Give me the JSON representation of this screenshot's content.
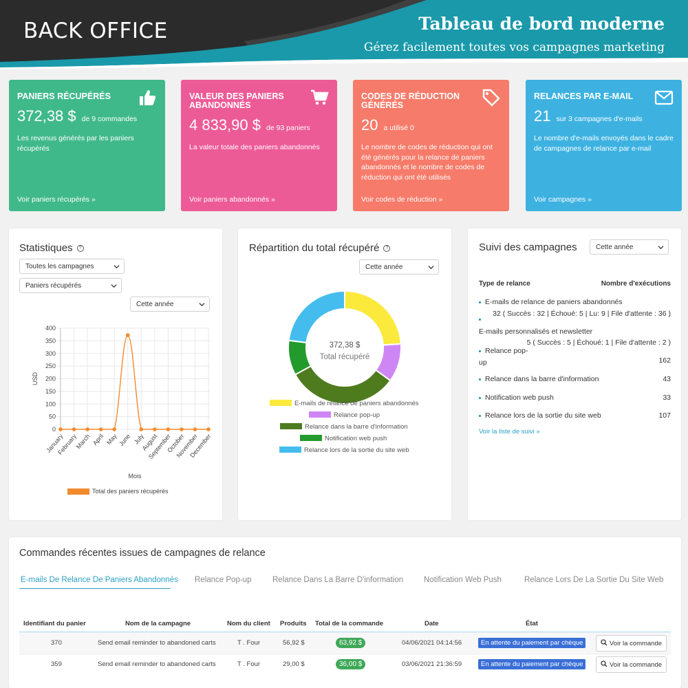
{
  "header": {
    "brand": "BACK OFFICE",
    "title": "Tableau de bord moderne",
    "subtitle": "Gérez facilement toutes vos campagnes marketing"
  },
  "cards": [
    {
      "title": "PANIERS RÉCUPÉRÉS",
      "value": "372,38 $",
      "value_sub": "de 9 commandes",
      "desc": "Les revenus générés par les paniers récupérés",
      "link": "Voir paniers récupérés »",
      "color": "#40b98a",
      "icon": "thumbs-up-icon"
    },
    {
      "title": "VALEUR DES PANIERS ABANDONNÉS",
      "value": "4 833,90 $",
      "value_sub": "de 93 paniers",
      "desc": "La valeur totale des paniers abandonnés",
      "link": "Voir paniers abandonnés »",
      "color": "#ed5b97",
      "icon": "shopping-cart-icon"
    },
    {
      "title": "CODES DE RÉDUCTION GÉNÉRÉS",
      "value": "20",
      "value_sub": "a utilisé 0",
      "desc": "Le nombre de codes de réduction qui ont été générés pour la relance de paniers abandonnés et le nombre de codes de réduction qui ont été utilisés",
      "link": "Voir codes de réduction »",
      "color": "#f67b6a",
      "icon": "tag-icon"
    },
    {
      "title": "RELANCES PAR E-MAIL",
      "value": "21",
      "value_sub": "sur 3 campagnes d'e-mails",
      "desc": "Le nombre d'e-mails envoyés dans le cadre de campagnes de relance par e-mail",
      "link": "Voir campagnes »",
      "color": "#3db2e1",
      "icon": "envelope-icon"
    }
  ],
  "stats": {
    "title": "Statistiques",
    "select_campaigns": "Toutes les campagnes",
    "select_metric": "Paniers récupérés",
    "select_period": "Cette année",
    "chart_data": {
      "type": "line",
      "categories": [
        "January",
        "February",
        "March",
        "April",
        "May",
        "June",
        "July",
        "August",
        "September",
        "October",
        "November",
        "December"
      ],
      "series": [
        {
          "name": "Total des paniers récupérés",
          "values": [
            0,
            0,
            0,
            0,
            0,
            372.38,
            0,
            0,
            0,
            0,
            0,
            0
          ],
          "color": "#f28a2e"
        }
      ],
      "xlabel": "Mois",
      "ylabel": "USD",
      "ylim": [
        0,
        400
      ],
      "yticks": [
        "0",
        "50",
        "100",
        "150",
        "200",
        "250",
        "300",
        "350",
        "400"
      ],
      "grid": true,
      "legend": "bottom"
    }
  },
  "distribution": {
    "title": "Répartition du total récupéré",
    "select_period": "Cette année",
    "center_value": "372,38 $",
    "center_label": "Total récupéré",
    "chart_data": {
      "type": "pie",
      "categories": [
        "E-mails de relance de paniers abandonnés",
        "Relance pop-up",
        "Relance dans la barre d'information",
        "Notification web push",
        "Relance lors de la sortie du site web"
      ],
      "values": [
        24,
        11,
        32,
        10,
        23
      ],
      "colors": [
        "#fbe93c",
        "#cf86f5",
        "#4f7b1f",
        "#239a2c",
        "#44bdee"
      ],
      "legend": "bottom"
    }
  },
  "tracking": {
    "title": "Suivi des campagnes",
    "select_period": "Cette année",
    "col_type": "Type de relance",
    "col_count": "Nombre d'exécutions",
    "items": [
      {
        "label": "E-mails de relance de paniers abandonnés",
        "value": "32 ( Succès : 32 | Échoué: 5 | Lu: 9 | File d'attente : 36 )"
      },
      {
        "label": "E-mails personnalisés et newsletter",
        "value": "5 ( Succès : 5 | Échoué: 1 | File d'attente : 2 )"
      },
      {
        "label": "Relance pop-up",
        "value": "162"
      },
      {
        "label": "Relance dans la barre d'information",
        "value": "43"
      },
      {
        "label": "Notification web push",
        "value": "33"
      },
      {
        "label": "Relance lors de la sortie du site web",
        "value": "107"
      }
    ],
    "link": "Voir la liste de suivi »"
  },
  "orders": {
    "title": "Commandes récentes issues de campagnes de relance",
    "tabs": [
      "E-mails De Relance De Paniers Abandonnés",
      "Relance Pop-up",
      "Relance Dans La Barre D'information",
      "Notification Web Push",
      "Relance Lors De La Sortie Du Site Web"
    ],
    "headers": [
      "Identifiant du panier",
      "Nom de la campagne",
      "Nom du client",
      "Produits",
      "Total de la commande",
      "Date",
      "État"
    ],
    "rows": [
      {
        "id": "370",
        "campaign": "Send email reminder to abandoned carts",
        "customer": "T . Four",
        "products": "56,92 $",
        "total": "63,92 $",
        "date": "04/06/2021 04:14:56",
        "status": "En attente du paiement par chèque",
        "action": "Voir la commande"
      },
      {
        "id": "359",
        "campaign": "Send email reminder to abandoned carts",
        "customer": "T . Four",
        "products": "29,00 $",
        "total": "36,00 $",
        "date": "03/06/2021 21:36:59",
        "status": "En attente du paiement par chèque",
        "action": "Voir la commande"
      }
    ]
  }
}
